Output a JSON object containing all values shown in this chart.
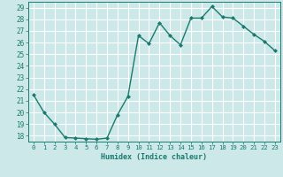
{
  "x": [
    0,
    1,
    2,
    3,
    4,
    5,
    6,
    7,
    8,
    9,
    10,
    11,
    12,
    13,
    14,
    15,
    16,
    17,
    18,
    19,
    20,
    21,
    22,
    23
  ],
  "y": [
    21.5,
    20.0,
    19.0,
    17.85,
    17.8,
    17.75,
    17.7,
    17.8,
    19.8,
    21.4,
    26.6,
    25.9,
    27.7,
    26.6,
    25.8,
    28.1,
    28.1,
    29.1,
    28.2,
    28.1,
    27.4,
    26.7,
    26.1,
    25.3
  ],
  "line_color": "#1a7a6e",
  "marker": "D",
  "marker_size": 2.0,
  "xlabel": "Humidex (Indice chaleur)",
  "ylim": [
    17.5,
    29.5
  ],
  "xlim": [
    -0.5,
    23.5
  ],
  "yticks": [
    18,
    19,
    20,
    21,
    22,
    23,
    24,
    25,
    26,
    27,
    28,
    29
  ],
  "xticks": [
    0,
    1,
    2,
    3,
    4,
    5,
    6,
    7,
    8,
    9,
    10,
    11,
    12,
    13,
    14,
    15,
    16,
    17,
    18,
    19,
    20,
    21,
    22,
    23
  ],
  "bg_color": "#cce8e8",
  "grid_color": "#ffffff",
  "tick_color": "#1a7a6e",
  "font_color": "#1a7a6e",
  "xlabel_fontsize": 6.0,
  "tick_fontsize": 5.2,
  "linewidth": 1.0
}
